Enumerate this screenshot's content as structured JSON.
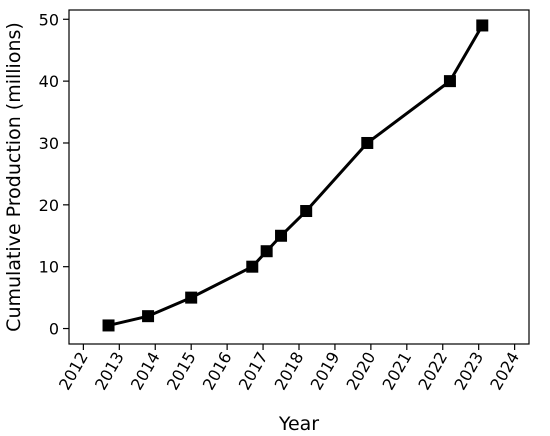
{
  "chart_data": {
    "type": "line",
    "title": "",
    "xlabel": "Year",
    "ylabel": "Cumulative Production (millions)",
    "xlim": [
      2011.6,
      2024.4
    ],
    "ylim": [
      -2.5,
      51.5
    ],
    "x_ticks": [
      "2012",
      "2013",
      "2014",
      "2015",
      "2016",
      "2017",
      "2018",
      "2019",
      "2020",
      "2021",
      "2022",
      "2023",
      "2024"
    ],
    "y_ticks": [
      "0",
      "10",
      "20",
      "30",
      "40",
      "50"
    ],
    "grid": false,
    "legend": "none",
    "series": [
      {
        "color": "#000000",
        "marker": "square",
        "x": [
          2012.7,
          2013.8,
          2015.0,
          2016.7,
          2017.1,
          2017.5,
          2018.2,
          2019.9,
          2022.2,
          2023.1
        ],
        "y": [
          0.5,
          2,
          5,
          10,
          12.5,
          15,
          19,
          30,
          40,
          49
        ]
      }
    ]
  }
}
